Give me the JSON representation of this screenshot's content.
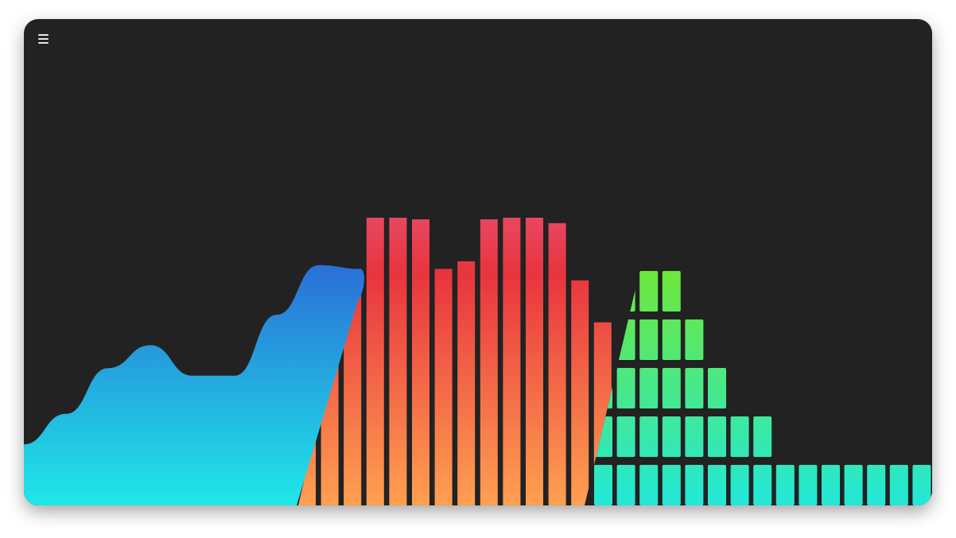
{
  "menu": {
    "icon": "hamburger-menu-icon",
    "color": "#e8e8e8"
  },
  "theme": {
    "background": "#222222",
    "area_gradient": [
      "#2a6fd6",
      "#1fe8e8"
    ],
    "bar_gradient": [
      "#e86aa0",
      "#e8343e",
      "#ffa050"
    ],
    "segment_gradient": [
      "#6ee83a",
      "#22e8d8"
    ]
  },
  "chart_data": [
    {
      "type": "area",
      "style": "smooth",
      "points": [
        {
          "x": 0,
          "y": 16
        },
        {
          "x": 1,
          "y": 24
        },
        {
          "x": 2,
          "y": 36
        },
        {
          "x": 3,
          "y": 42
        },
        {
          "x": 4,
          "y": 34
        },
        {
          "x": 5,
          "y": 34
        },
        {
          "x": 6,
          "y": 50
        },
        {
          "x": 7,
          "y": 63
        },
        {
          "x": 8,
          "y": 62
        }
      ],
      "ylim": [
        0,
        100
      ]
    },
    {
      "type": "bar",
      "values": [
        48,
        53,
        60,
        84,
        84,
        75,
        62,
        64,
        75,
        85,
        89,
        74,
        59,
        48
      ],
      "ylim": [
        0,
        100
      ]
    },
    {
      "type": "bar",
      "style": "segmented",
      "values": [
        5,
        5,
        5,
        5,
        4,
        3,
        2,
        2,
        1,
        1,
        1,
        1,
        1,
        1,
        1,
        2,
        2,
        3,
        5
      ],
      "ylim": [
        0,
        5
      ]
    }
  ]
}
